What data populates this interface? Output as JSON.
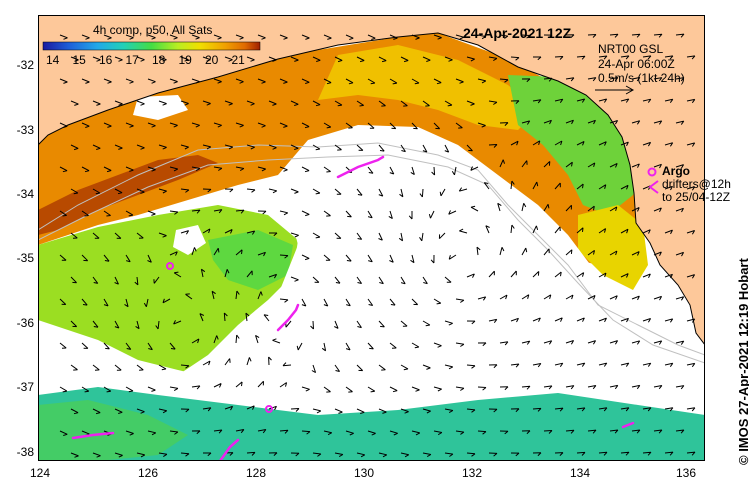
{
  "map": {
    "title": "24-Apr-2021 12Z",
    "composite_label": "4h comp, p50, All Sats",
    "colorbar": {
      "min": 14,
      "max": 22,
      "tick_labels": [
        "14",
        "15",
        "16",
        "17",
        "18",
        "19",
        "20",
        "21"
      ],
      "colors": [
        "#1a1aa0",
        "#1f5fd8",
        "#22a8e8",
        "#22d0b8",
        "#44dd44",
        "#b8ee22",
        "#f0e000",
        "#f0a000",
        "#e06a00",
        "#a02000"
      ]
    },
    "current_model": {
      "name": "NRT00 GSL",
      "date": "24-Apr 06:00Z",
      "scale": "0.5m/s (1kt 24h)"
    },
    "argo_label": "Argo",
    "drifters_label": "drifters@12h",
    "drifters_to": "to 25/04-12Z",
    "credit": "© IMOS 27-Apr-2021 12:19 Hobart",
    "colors": {
      "land": "#fdc89a",
      "cloud": "#ffffff",
      "drifter": "#ee22ee",
      "contour": "#c0c0c0"
    },
    "lat_labels": [
      "-32",
      "-33",
      "-34",
      "-35",
      "-36",
      "-37",
      "-38"
    ],
    "lon_labels": [
      "124",
      "126",
      "128",
      "130",
      "132",
      "134",
      "136"
    ]
  }
}
